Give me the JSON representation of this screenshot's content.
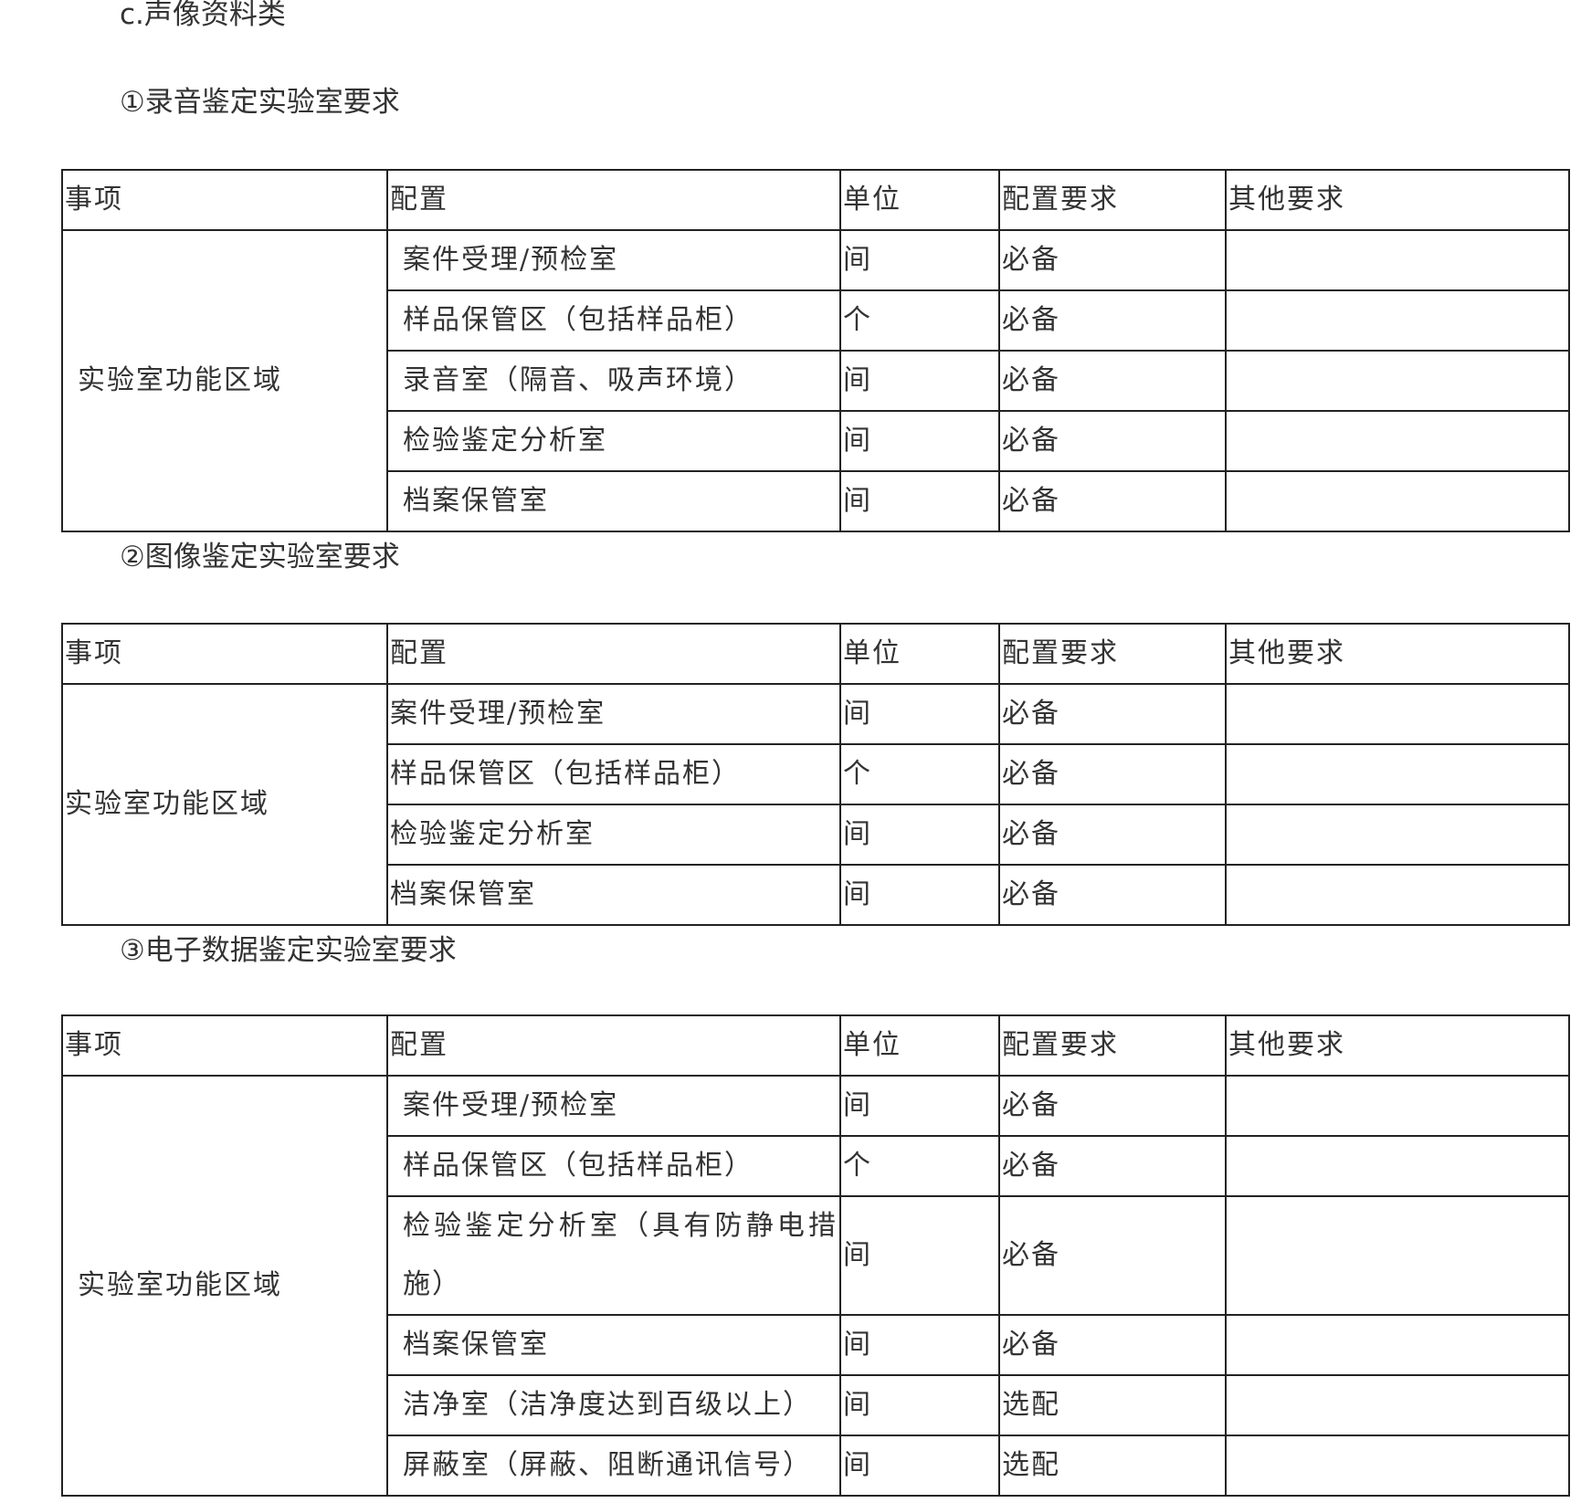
{
  "heading": "c.声像资料类",
  "sections": [
    {
      "title": "①录音鉴定实验室要求",
      "header": [
        "事项",
        "配置",
        "单位",
        "配置要求",
        "其他要求"
      ],
      "group": "实验室功能区域",
      "rows": [
        [
          "案件受理/预检室",
          "间",
          "必备"
        ],
        [
          "样品保管区（包括样品柜）",
          "个",
          "必备"
        ],
        [
          "录音室（隔音、吸声环境）",
          "间",
          "必备"
        ],
        [
          "检验鉴定分析室",
          "间",
          "必备"
        ],
        [
          "档案保管室",
          "间",
          "必备"
        ]
      ]
    },
    {
      "title": "②图像鉴定实验室要求",
      "header": [
        "事项",
        "配置",
        "单位",
        "配置要求",
        "其他要求"
      ],
      "group": "实验室功能区域",
      "rows": [
        [
          "案件受理/预检室",
          "间",
          "必备"
        ],
        [
          "样品保管区（包括样品柜）",
          "个",
          "必备"
        ],
        [
          "检验鉴定分析室",
          "间",
          "必备"
        ],
        [
          "档案保管室",
          "间",
          "必备"
        ]
      ]
    },
    {
      "title": "③电子数据鉴定实验室要求",
      "header": [
        "事项",
        "配置",
        "单位",
        "配置要求",
        "其他要求"
      ],
      "group": "实验室功能区域",
      "rows": [
        [
          "案件受理/预检室",
          "间",
          "必备"
        ],
        [
          "样品保管区（包括样品柜）",
          "个",
          "必备"
        ],
        [
          "检验鉴定分析室（具有防静电措施）",
          "间",
          "必备"
        ],
        [
          "档案保管室",
          "间",
          "必备"
        ],
        [
          "洁净室（洁净度达到百级以上）",
          "间",
          "选配"
        ],
        [
          "屏蔽室（屏蔽、阻断通讯信号）",
          "间",
          "选配"
        ]
      ]
    }
  ]
}
